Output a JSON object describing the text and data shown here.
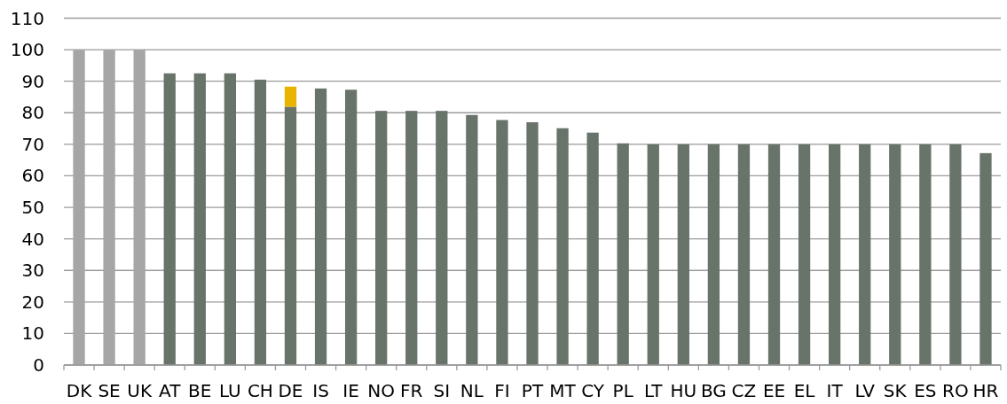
{
  "chart_data": {
    "type": "bar",
    "stacked": true,
    "grid": "y",
    "categories": [
      "DK",
      "SE",
      "UK",
      "AT",
      "BE",
      "LU",
      "CH",
      "DE",
      "IS",
      "IE",
      "NO",
      "FR",
      "SI",
      "NL",
      "FI",
      "PT",
      "MT",
      "CY",
      "PL",
      "LT",
      "HU",
      "BG",
      "CZ",
      "EE",
      "EL",
      "IT",
      "LV",
      "SK",
      "ES",
      "RO",
      "HR"
    ],
    "series": [
      {
        "colors": [
          "#a6a6a6",
          "#a6a6a6",
          "#a6a6a6",
          "#68736a",
          "#68736a",
          "#68736a",
          "#68736a",
          "#68736a",
          "#68736a",
          "#68736a",
          "#68736a",
          "#68736a",
          "#68736a",
          "#68736a",
          "#68736a",
          "#68736a",
          "#68736a",
          "#68736a",
          "#68736a",
          "#68736a",
          "#68736a",
          "#68736a",
          "#68736a",
          "#68736a",
          "#68736a",
          "#68736a",
          "#68736a",
          "#68736a",
          "#68736a",
          "#68736a",
          "#68736a"
        ],
        "values": [
          100,
          100,
          100,
          92.5,
          92.5,
          92.5,
          90.5,
          81.9,
          87.7,
          87.3,
          80.6,
          80.6,
          80.6,
          79.3,
          77.7,
          77,
          75.1,
          73.7,
          70.3,
          70,
          70,
          70,
          70,
          70,
          70,
          70,
          70,
          70,
          70,
          70,
          67.2
        ]
      },
      {
        "color": "#e8b400",
        "values": [
          null,
          null,
          null,
          null,
          null,
          null,
          null,
          6.4,
          null,
          null,
          null,
          null,
          null,
          null,
          null,
          null,
          null,
          null,
          null,
          null,
          null,
          null,
          null,
          null,
          null,
          null,
          null,
          null,
          null,
          null,
          null
        ]
      }
    ],
    "ylim": [
      0,
      110
    ],
    "yticks": [
      0,
      10,
      20,
      30,
      40,
      50,
      60,
      70,
      80,
      90,
      100,
      110
    ]
  }
}
